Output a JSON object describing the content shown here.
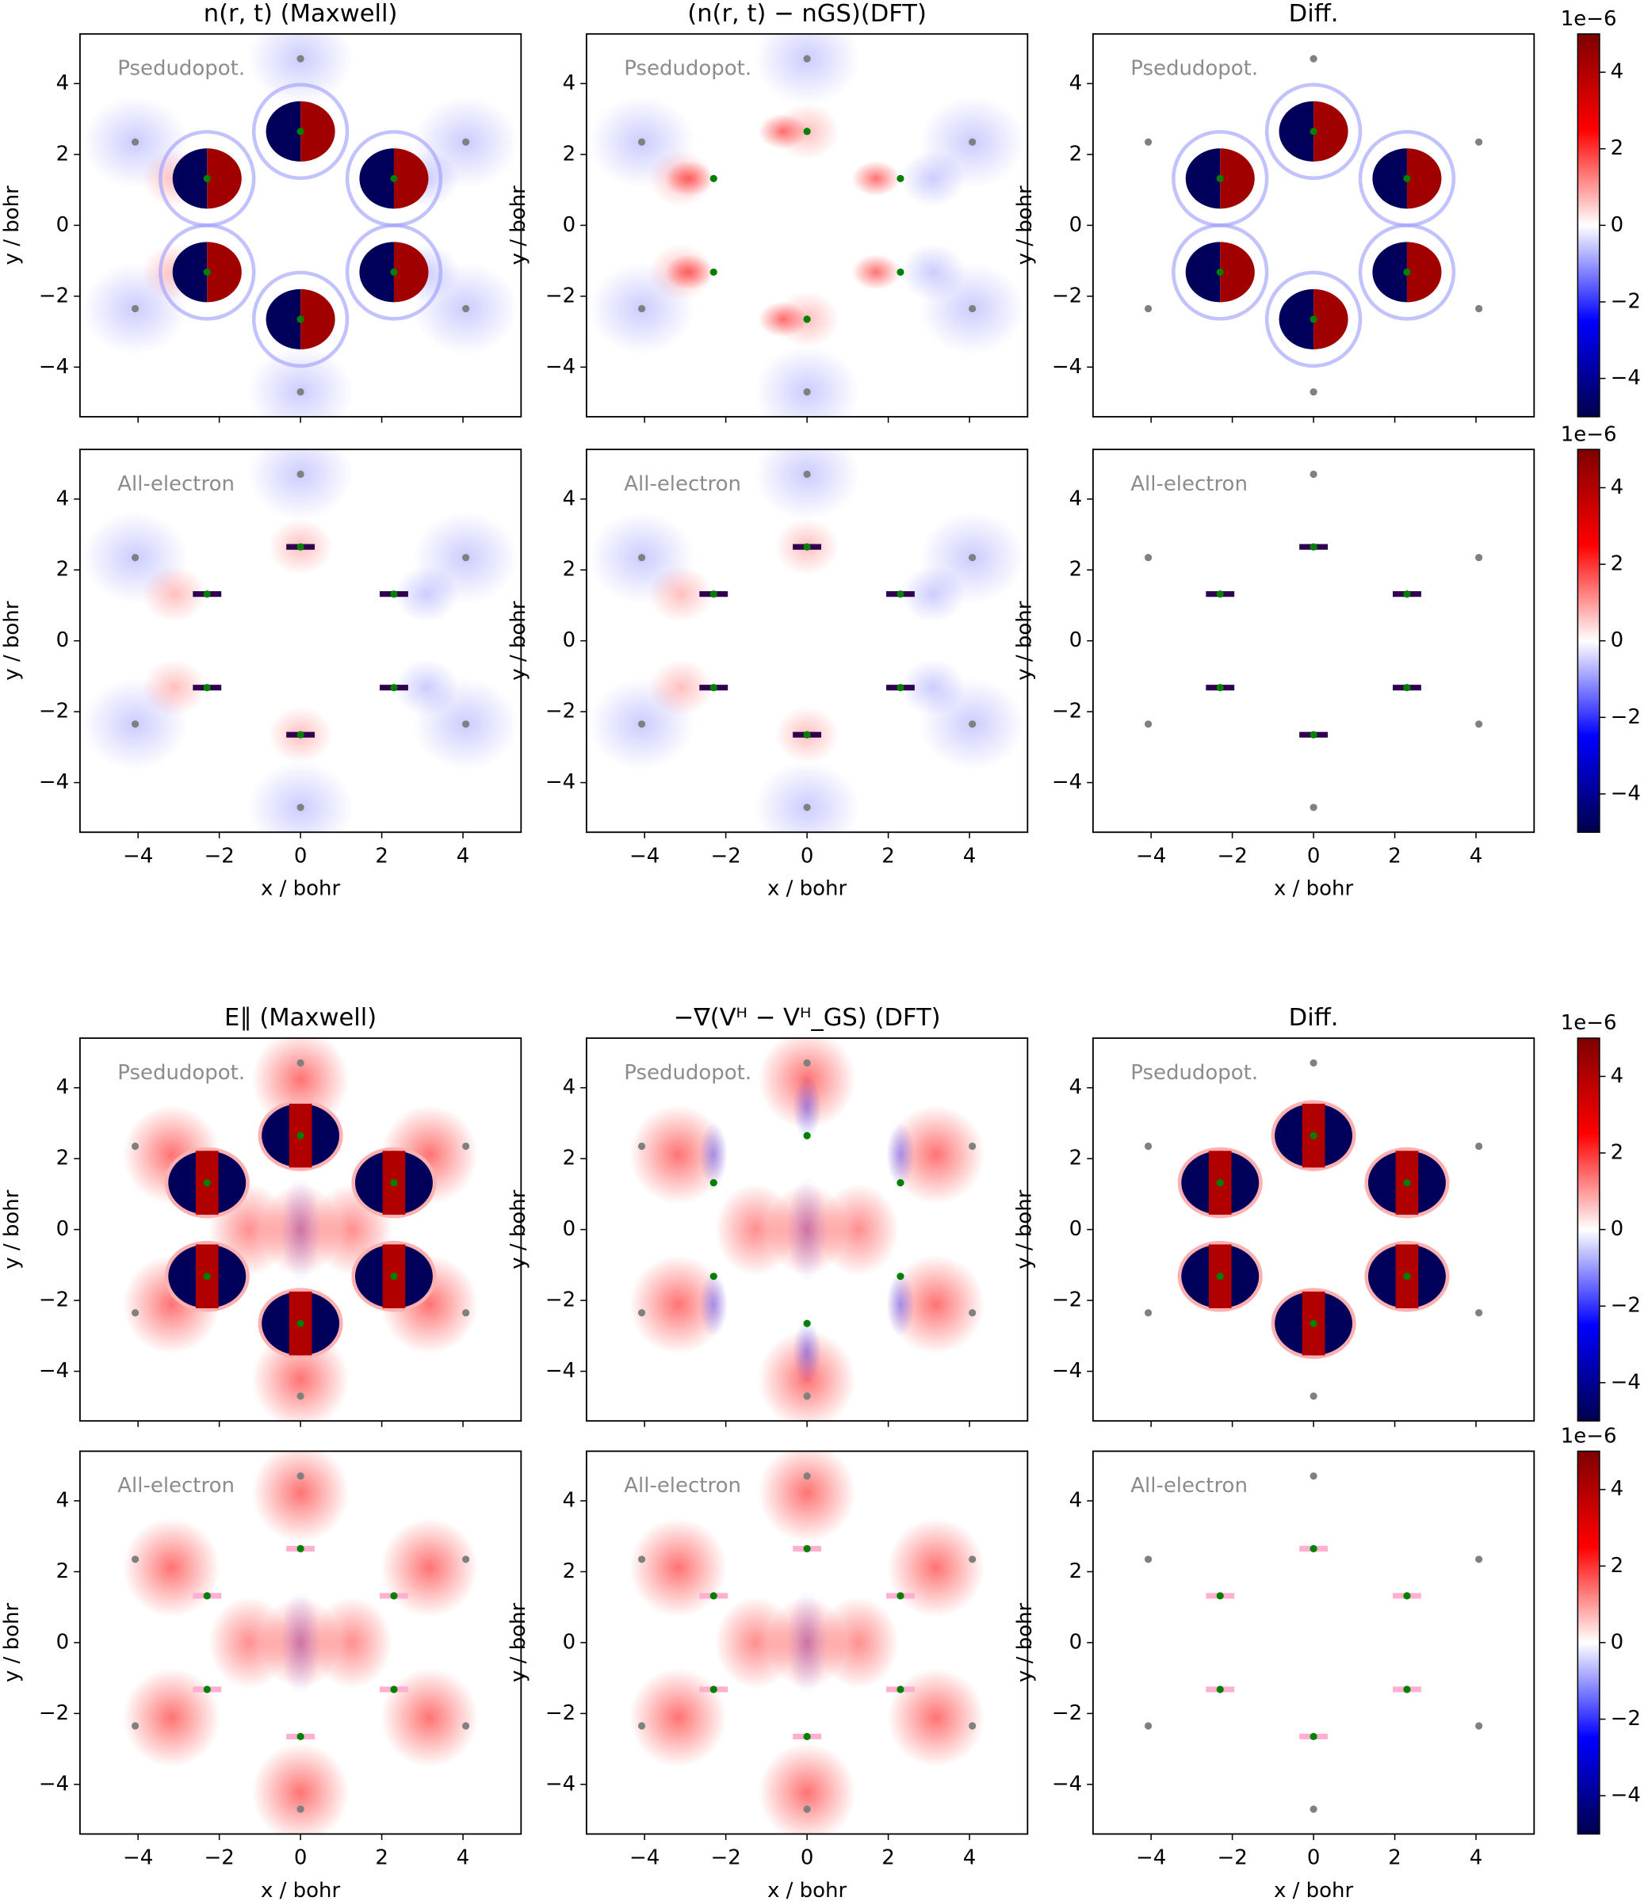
{
  "chart_data": [
    {
      "type": "scatter",
      "title": "n(r, t) (Maxwell)",
      "annotation": "Psedudopot.",
      "ylabel": "y / bohr",
      "xlim": [
        -5.43,
        5.43
      ],
      "ylim": [
        -5.4,
        5.4
      ],
      "xticks": [
        {
          "value": -4,
          "label": "−4"
        },
        {
          "value": -2,
          "label": "−2"
        },
        0,
        2,
        4
      ],
      "yticks": [
        {
          "value": -4,
          "label": "−4"
        },
        {
          "value": -2,
          "label": "−2"
        },
        0,
        2,
        4
      ],
      "series": [
        {
          "color": "#808080",
          "x": [
            0,
            4.07,
            4.07,
            0,
            -4.07,
            -4.07
          ],
          "values": [
            4.7,
            2.35,
            -2.35,
            -4.7,
            -2.35,
            2.35
          ]
        },
        {
          "color": "#008000",
          "x": [
            0,
            2.3,
            2.3,
            0,
            -2.3,
            -2.3
          ],
          "values": [
            2.65,
            1.32,
            -1.32,
            -2.65,
            -1.32,
            1.32
          ]
        }
      ]
    },
    {
      "type": "scatter",
      "title": "(n(r, t) − nGS)(DFT)",
      "annotation": "Psedudopot.",
      "ylabel": "y / bohr",
      "xlim": [
        -5.43,
        5.43
      ],
      "ylim": [
        -5.4,
        5.4
      ],
      "xticks": [
        {
          "value": -4,
          "label": "−4"
        },
        {
          "value": -2,
          "label": "−2"
        },
        0,
        2,
        4
      ],
      "yticks": [
        {
          "value": -4,
          "label": "−4"
        },
        {
          "value": -2,
          "label": "−2"
        },
        0,
        2,
        4
      ],
      "series": [
        {
          "color": "#808080",
          "x": [
            0,
            4.07,
            4.07,
            0,
            -4.07,
            -4.07
          ],
          "values": [
            4.7,
            2.35,
            -2.35,
            -4.7,
            -2.35,
            2.35
          ]
        },
        {
          "color": "#008000",
          "x": [
            0,
            2.3,
            2.3,
            0,
            -2.3,
            -2.3
          ],
          "values": [
            2.65,
            1.32,
            -1.32,
            -2.65,
            -1.32,
            1.32
          ]
        }
      ]
    },
    {
      "type": "scatter",
      "title": "Diff.",
      "annotation": "Psedudopot.",
      "ylabel": "y / bohr",
      "xlim": [
        -5.43,
        5.43
      ],
      "ylim": [
        -5.4,
        5.4
      ],
      "xticks": [
        {
          "value": -4,
          "label": "−4"
        },
        {
          "value": -2,
          "label": "−2"
        },
        0,
        2,
        4
      ],
      "yticks": [
        {
          "value": -4,
          "label": "−4"
        },
        {
          "value": -2,
          "label": "−2"
        },
        0,
        2,
        4
      ],
      "series": [
        {
          "color": "#808080",
          "x": [
            0,
            4.07,
            4.07,
            0,
            -4.07,
            -4.07
          ],
          "values": [
            4.7,
            2.35,
            -2.35,
            -4.7,
            -2.35,
            2.35
          ]
        },
        {
          "color": "#008000",
          "x": [
            0,
            2.3,
            2.3,
            0,
            -2.3,
            -2.3
          ],
          "values": [
            2.65,
            1.32,
            -1.32,
            -2.65,
            -1.32,
            1.32
          ]
        }
      ],
      "colorbar": {
        "label": "1e−6",
        "lim": [
          -5,
          5
        ],
        "ticks": [
          {
            "value": -4,
            "label": "−4"
          },
          {
            "value": -2,
            "label": "−2"
          },
          0,
          2,
          4
        ]
      }
    },
    {
      "type": "scatter",
      "annotation": "All-electron",
      "ylabel": "y / bohr",
      "xlabel": "x / bohr",
      "xlim": [
        -5.43,
        5.43
      ],
      "ylim": [
        -5.4,
        5.4
      ],
      "xticks": [
        {
          "value": -4,
          "label": "−4"
        },
        {
          "value": -2,
          "label": "−2"
        },
        0,
        2,
        4
      ],
      "yticks": [
        {
          "value": -4,
          "label": "−4"
        },
        {
          "value": -2,
          "label": "−2"
        },
        0,
        2,
        4
      ],
      "series": [
        {
          "color": "#808080",
          "x": [
            0,
            4.07,
            4.07,
            0,
            -4.07,
            -4.07
          ],
          "values": [
            4.7,
            2.35,
            -2.35,
            -4.7,
            -2.35,
            2.35
          ]
        },
        {
          "color": "#008000",
          "x": [
            0,
            2.3,
            2.3,
            0,
            -2.3,
            -2.3
          ],
          "values": [
            2.65,
            1.32,
            -1.32,
            -2.65,
            -1.32,
            1.32
          ]
        }
      ]
    },
    {
      "type": "scatter",
      "annotation": "All-electron",
      "ylabel": "y / bohr",
      "xlabel": "x / bohr",
      "xlim": [
        -5.43,
        5.43
      ],
      "ylim": [
        -5.4,
        5.4
      ],
      "xticks": [
        {
          "value": -4,
          "label": "−4"
        },
        {
          "value": -2,
          "label": "−2"
        },
        0,
        2,
        4
      ],
      "yticks": [
        {
          "value": -4,
          "label": "−4"
        },
        {
          "value": -2,
          "label": "−2"
        },
        0,
        2,
        4
      ],
      "series": [
        {
          "color": "#808080",
          "x": [
            0,
            4.07,
            4.07,
            0,
            -4.07,
            -4.07
          ],
          "values": [
            4.7,
            2.35,
            -2.35,
            -4.7,
            -2.35,
            2.35
          ]
        },
        {
          "color": "#008000",
          "x": [
            0,
            2.3,
            2.3,
            0,
            -2.3,
            -2.3
          ],
          "values": [
            2.65,
            1.32,
            -1.32,
            -2.65,
            -1.32,
            1.32
          ]
        }
      ]
    },
    {
      "type": "scatter",
      "annotation": "All-electron",
      "ylabel": "y / bohr",
      "xlabel": "x / bohr",
      "xlim": [
        -5.43,
        5.43
      ],
      "ylim": [
        -5.4,
        5.4
      ],
      "xticks": [
        {
          "value": -4,
          "label": "−4"
        },
        {
          "value": -2,
          "label": "−2"
        },
        0,
        2,
        4
      ],
      "yticks": [
        {
          "value": -4,
          "label": "−4"
        },
        {
          "value": -2,
          "label": "−2"
        },
        0,
        2,
        4
      ],
      "series": [
        {
          "color": "#808080",
          "x": [
            0,
            4.07,
            4.07,
            0,
            -4.07,
            -4.07
          ],
          "values": [
            4.7,
            2.35,
            -2.35,
            -4.7,
            -2.35,
            2.35
          ]
        },
        {
          "color": "#008000",
          "x": [
            0,
            2.3,
            2.3,
            0,
            -2.3,
            -2.3
          ],
          "values": [
            2.65,
            1.32,
            -1.32,
            -2.65,
            -1.32,
            1.32
          ]
        }
      ],
      "colorbar": {
        "label": "1e−6",
        "lim": [
          -5,
          5
        ],
        "ticks": [
          {
            "value": -4,
            "label": "−4"
          },
          {
            "value": -2,
            "label": "−2"
          },
          0,
          2,
          4
        ]
      }
    },
    {
      "type": "scatter",
      "title": "E∥ (Maxwell)",
      "annotation": "Psedudopot.",
      "ylabel": "y / bohr",
      "xlim": [
        -5.43,
        5.43
      ],
      "ylim": [
        -5.4,
        5.4
      ],
      "xticks": [
        {
          "value": -4,
          "label": "−4"
        },
        {
          "value": -2,
          "label": "−2"
        },
        0,
        2,
        4
      ],
      "yticks": [
        {
          "value": -4,
          "label": "−4"
        },
        {
          "value": -2,
          "label": "−2"
        },
        0,
        2,
        4
      ],
      "series": [
        {
          "color": "#808080",
          "x": [
            0,
            4.07,
            4.07,
            0,
            -4.07,
            -4.07
          ],
          "values": [
            4.7,
            2.35,
            -2.35,
            -4.7,
            -2.35,
            2.35
          ]
        },
        {
          "color": "#008000",
          "x": [
            0,
            2.3,
            2.3,
            0,
            -2.3,
            -2.3
          ],
          "values": [
            2.65,
            1.32,
            -1.32,
            -2.65,
            -1.32,
            1.32
          ]
        }
      ]
    },
    {
      "type": "scatter",
      "title": "−∇(Vᴴ − Vᴴ_GS) (DFT)",
      "annotation": "Psedudopot.",
      "ylabel": "y / bohr",
      "xlim": [
        -5.43,
        5.43
      ],
      "ylim": [
        -5.4,
        5.4
      ],
      "xticks": [
        {
          "value": -4,
          "label": "−4"
        },
        {
          "value": -2,
          "label": "−2"
        },
        0,
        2,
        4
      ],
      "yticks": [
        {
          "value": -4,
          "label": "−4"
        },
        {
          "value": -2,
          "label": "−2"
        },
        0,
        2,
        4
      ],
      "series": [
        {
          "color": "#808080",
          "x": [
            0,
            4.07,
            4.07,
            0,
            -4.07,
            -4.07
          ],
          "values": [
            4.7,
            2.35,
            -2.35,
            -4.7,
            -2.35,
            2.35
          ]
        },
        {
          "color": "#008000",
          "x": [
            0,
            2.3,
            2.3,
            0,
            -2.3,
            -2.3
          ],
          "values": [
            2.65,
            1.32,
            -1.32,
            -2.65,
            -1.32,
            1.32
          ]
        }
      ]
    },
    {
      "type": "scatter",
      "title": "Diff.",
      "annotation": "Psedudopot.",
      "ylabel": "y / bohr",
      "xlim": [
        -5.43,
        5.43
      ],
      "ylim": [
        -5.4,
        5.4
      ],
      "xticks": [
        {
          "value": -4,
          "label": "−4"
        },
        {
          "value": -2,
          "label": "−2"
        },
        0,
        2,
        4
      ],
      "yticks": [
        {
          "value": -4,
          "label": "−4"
        },
        {
          "value": -2,
          "label": "−2"
        },
        0,
        2,
        4
      ],
      "series": [
        {
          "color": "#808080",
          "x": [
            0,
            4.07,
            4.07,
            0,
            -4.07,
            -4.07
          ],
          "values": [
            4.7,
            2.35,
            -2.35,
            -4.7,
            -2.35,
            2.35
          ]
        },
        {
          "color": "#008000",
          "x": [
            0,
            2.3,
            2.3,
            0,
            -2.3,
            -2.3
          ],
          "values": [
            2.65,
            1.32,
            -1.32,
            -2.65,
            -1.32,
            1.32
          ]
        }
      ],
      "colorbar": {
        "label": "1e−6",
        "lim": [
          -5,
          5
        ],
        "ticks": [
          {
            "value": -4,
            "label": "−4"
          },
          {
            "value": -2,
            "label": "−2"
          },
          0,
          2,
          4
        ]
      }
    },
    {
      "type": "scatter",
      "annotation": "All-electron",
      "ylabel": "y / bohr",
      "xlabel": "x / bohr",
      "xlim": [
        -5.43,
        5.43
      ],
      "ylim": [
        -5.4,
        5.4
      ],
      "xticks": [
        {
          "value": -4,
          "label": "−4"
        },
        {
          "value": -2,
          "label": "−2"
        },
        0,
        2,
        4
      ],
      "yticks": [
        {
          "value": -4,
          "label": "−4"
        },
        {
          "value": -2,
          "label": "−2"
        },
        0,
        2,
        4
      ],
      "series": [
        {
          "color": "#808080",
          "x": [
            0,
            4.07,
            4.07,
            0,
            -4.07,
            -4.07
          ],
          "values": [
            4.7,
            2.35,
            -2.35,
            -4.7,
            -2.35,
            2.35
          ]
        },
        {
          "color": "#008000",
          "x": [
            0,
            2.3,
            2.3,
            0,
            -2.3,
            -2.3
          ],
          "values": [
            2.65,
            1.32,
            -1.32,
            -2.65,
            -1.32,
            1.32
          ]
        }
      ]
    },
    {
      "type": "scatter",
      "annotation": "All-electron",
      "ylabel": "y / bohr",
      "xlabel": "x / bohr",
      "xlim": [
        -5.43,
        5.43
      ],
      "ylim": [
        -5.4,
        5.4
      ],
      "xticks": [
        {
          "value": -4,
          "label": "−4"
        },
        {
          "value": -2,
          "label": "−2"
        },
        0,
        2,
        4
      ],
      "yticks": [
        {
          "value": -4,
          "label": "−4"
        },
        {
          "value": -2,
          "label": "−2"
        },
        0,
        2,
        4
      ],
      "series": [
        {
          "color": "#808080",
          "x": [
            0,
            4.07,
            4.07,
            0,
            -4.07,
            -4.07
          ],
          "values": [
            4.7,
            2.35,
            -2.35,
            -4.7,
            -2.35,
            2.35
          ]
        },
        {
          "color": "#008000",
          "x": [
            0,
            2.3,
            2.3,
            0,
            -2.3,
            -2.3
          ],
          "values": [
            2.65,
            1.32,
            -1.32,
            -2.65,
            -1.32,
            1.32
          ]
        }
      ]
    },
    {
      "type": "scatter",
      "annotation": "All-electron",
      "ylabel": "y / bohr",
      "xlabel": "x / bohr",
      "xlim": [
        -5.43,
        5.43
      ],
      "ylim": [
        -5.4,
        5.4
      ],
      "xticks": [
        {
          "value": -4,
          "label": "−4"
        },
        {
          "value": -2,
          "label": "−2"
        },
        0,
        2,
        4
      ],
      "yticks": [
        {
          "value": -4,
          "label": "−4"
        },
        {
          "value": -2,
          "label": "−2"
        },
        0,
        2,
        4
      ],
      "series": [
        {
          "color": "#808080",
          "x": [
            0,
            4.07,
            4.07,
            0,
            -4.07,
            -4.07
          ],
          "values": [
            4.7,
            2.35,
            -2.35,
            -4.7,
            -2.35,
            2.35
          ]
        },
        {
          "color": "#008000",
          "x": [
            0,
            2.3,
            2.3,
            0,
            -2.3,
            -2.3
          ],
          "values": [
            2.65,
            1.32,
            -1.32,
            -2.65,
            -1.32,
            1.32
          ]
        }
      ],
      "colorbar": {
        "label": "1e−6",
        "lim": [
          -5,
          5
        ],
        "ticks": [
          {
            "value": -4,
            "label": "−4"
          },
          {
            "value": -2,
            "label": "−2"
          },
          0,
          2,
          4
        ]
      }
    }
  ]
}
